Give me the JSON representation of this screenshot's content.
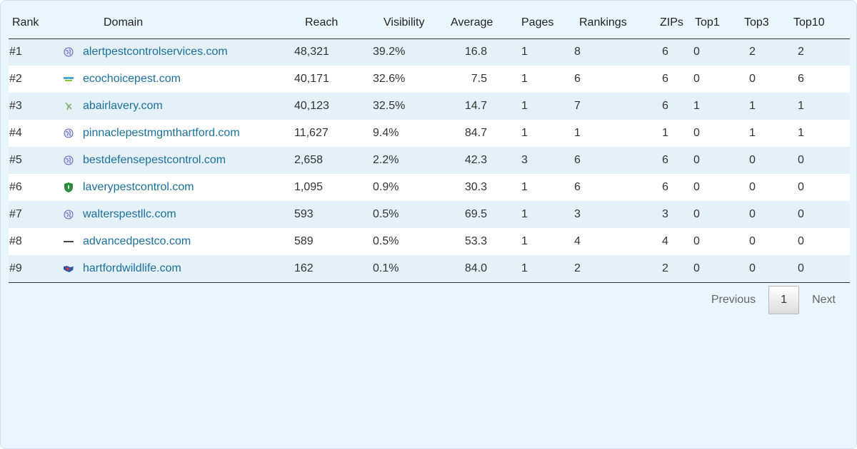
{
  "columns": {
    "rank": "Rank",
    "domain": "Domain",
    "reach": "Reach",
    "visibility": "Visibility",
    "average": "Average",
    "pages": "Pages",
    "rankings": "Rankings",
    "zips": "ZIPs",
    "top1": "Top1",
    "top3": "Top3",
    "top10": "Top10"
  },
  "rows": [
    {
      "rank": "#1",
      "domain": "alertpestcontrolservices.com",
      "icon": "globe-icon",
      "reach": "48,321",
      "visibility": "39.2%",
      "average": "16.8",
      "pages": "1",
      "rankings": "8",
      "zips": "6",
      "top1": "0",
      "top3": "2",
      "top10": "2"
    },
    {
      "rank": "#2",
      "domain": "ecochoicepest.com",
      "icon": "ecochoice-logo-icon",
      "reach": "40,171",
      "visibility": "32.6%",
      "average": "7.5",
      "pages": "1",
      "rankings": "6",
      "zips": "6",
      "top1": "0",
      "top3": "0",
      "top10": "6"
    },
    {
      "rank": "#3",
      "domain": "abairlavery.com",
      "icon": "insect-icon",
      "reach": "40,123",
      "visibility": "32.5%",
      "average": "14.7",
      "pages": "1",
      "rankings": "7",
      "zips": "6",
      "top1": "1",
      "top3": "1",
      "top10": "1"
    },
    {
      "rank": "#4",
      "domain": "pinnaclepestmgmthartford.com",
      "icon": "globe-icon",
      "reach": "11,627",
      "visibility": "9.4%",
      "average": "84.7",
      "pages": "1",
      "rankings": "1",
      "zips": "1",
      "top1": "0",
      "top3": "1",
      "top10": "1"
    },
    {
      "rank": "#5",
      "domain": "bestdefensepestcontrol.com",
      "icon": "globe-icon",
      "reach": "2,658",
      "visibility": "2.2%",
      "average": "42.3",
      "pages": "3",
      "rankings": "6",
      "zips": "6",
      "top1": "0",
      "top3": "0",
      "top10": "0"
    },
    {
      "rank": "#6",
      "domain": "laverypestcontrol.com",
      "icon": "shield-icon",
      "reach": "1,095",
      "visibility": "0.9%",
      "average": "30.3",
      "pages": "1",
      "rankings": "6",
      "zips": "6",
      "top1": "0",
      "top3": "0",
      "top10": "0"
    },
    {
      "rank": "#7",
      "domain": "walterspestllc.com",
      "icon": "globe-icon",
      "reach": "593",
      "visibility": "0.5%",
      "average": "69.5",
      "pages": "1",
      "rankings": "3",
      "zips": "3",
      "top1": "0",
      "top3": "0",
      "top10": "0"
    },
    {
      "rank": "#8",
      "domain": "advancedpestco.com",
      "icon": "wordmark-icon",
      "reach": "589",
      "visibility": "0.5%",
      "average": "53.3",
      "pages": "1",
      "rankings": "4",
      "zips": "4",
      "top1": "0",
      "top3": "0",
      "top10": "0"
    },
    {
      "rank": "#9",
      "domain": "hartfordwildlife.com",
      "icon": "map-icon",
      "reach": "162",
      "visibility": "0.1%",
      "average": "84.0",
      "pages": "1",
      "rankings": "2",
      "zips": "2",
      "top1": "0",
      "top3": "0",
      "top10": "0"
    }
  ],
  "pagination": {
    "previous": "Previous",
    "current": "1",
    "next": "Next"
  },
  "colors": {
    "link": "#1b6f9c",
    "panel_bg": "#eaf6fd",
    "stripe": "#e4f1f8"
  }
}
